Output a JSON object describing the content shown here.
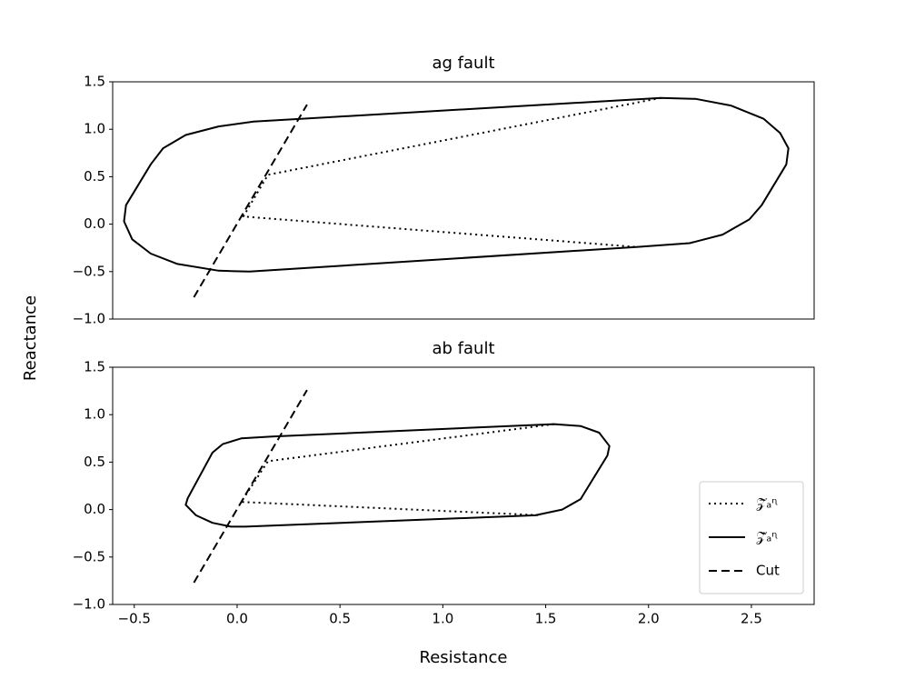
{
  "figure": {
    "ylabel": "Reactance"
  },
  "chart_data": [
    {
      "type": "line",
      "title": "ag fault",
      "xlim": [
        -0.605,
        2.805
      ],
      "ylim": [
        -1.0,
        1.5
      ],
      "yticks": [
        {
          "value": -1.0,
          "label": "−1.0"
        },
        {
          "value": -0.5,
          "label": "−0.5"
        },
        {
          "value": 0.0,
          "label": "0.0"
        },
        0.5,
        {
          "value": 1.0,
          "label": "1.0"
        },
        1.5
      ],
      "series": [
        {
          "color": "#000000",
          "dash": "dotted",
          "x": [
            2.06,
            0.15,
            0.03,
            1.94
          ],
          "values": [
            1.33,
            0.52,
            0.08,
            -0.24
          ]
        },
        {
          "color": "#000000",
          "dash": "solid",
          "x": [
            0.06,
            1.94,
            2.2,
            2.36,
            2.49,
            2.55,
            2.67,
            2.68,
            2.64,
            2.56,
            2.4,
            2.23,
            2.06,
            0.08,
            -0.09,
            -0.25,
            -0.36,
            -0.42,
            -0.54,
            -0.55,
            -0.51,
            -0.42,
            -0.29,
            -0.09,
            0.06
          ],
          "values": [
            -0.5,
            -0.24,
            -0.2,
            -0.11,
            0.05,
            0.2,
            0.63,
            0.8,
            0.96,
            1.11,
            1.25,
            1.32,
            1.33,
            1.08,
            1.03,
            0.94,
            0.8,
            0.63,
            0.2,
            0.03,
            -0.16,
            -0.31,
            -0.42,
            -0.49,
            -0.5
          ]
        },
        {
          "color": "#000000",
          "dash": "dashed",
          "x": [
            -0.21,
            0.34
          ],
          "values": [
            -0.77,
            1.26
          ]
        }
      ]
    },
    {
      "type": "line",
      "title": "ab fault",
      "xlabel": "Resistance",
      "xlim": [
        -0.605,
        2.805
      ],
      "ylim": [
        -1.0,
        1.5
      ],
      "xticks": [
        {
          "value": -0.5,
          "label": "−0.5"
        },
        {
          "value": 0.0,
          "label": "0.0"
        },
        0.5,
        {
          "value": 1.0,
          "label": "1.0"
        },
        1.5,
        {
          "value": 2.0,
          "label": "2.0"
        },
        2.5
      ],
      "yticks": [
        {
          "value": -1.0,
          "label": "−1.0"
        },
        {
          "value": -0.5,
          "label": "−0.5"
        },
        {
          "value": 0.0,
          "label": "0.0"
        },
        0.5,
        {
          "value": 1.0,
          "label": "1.0"
        },
        1.5
      ],
      "legend": "lower right",
      "series": [
        {
          "name": "𝒵⃗ₐᶯ",
          "color": "#000000",
          "dash": "dotted",
          "x": [
            1.54,
            0.15,
            0.02,
            1.48
          ],
          "values": [
            0.9,
            0.51,
            0.08,
            -0.06
          ]
        },
        {
          "name": "𝒵̂ₐᶯ",
          "color": "#000000",
          "dash": "solid",
          "x": [
            0.04,
            1.45,
            1.58,
            1.67,
            1.8,
            1.81,
            1.76,
            1.67,
            1.54,
            0.17,
            0.02,
            -0.07,
            -0.12,
            -0.24,
            -0.25,
            -0.2,
            -0.12,
            -0.03,
            0.04
          ],
          "values": [
            -0.18,
            -0.06,
            0.0,
            0.11,
            0.57,
            0.67,
            0.81,
            0.88,
            0.9,
            0.77,
            0.75,
            0.69,
            0.6,
            0.12,
            0.05,
            -0.06,
            -0.14,
            -0.18,
            -0.18
          ]
        },
        {
          "name": "Cut",
          "color": "#000000",
          "dash": "dashed",
          "x": [
            -0.21,
            0.34
          ],
          "values": [
            -0.77,
            1.26
          ]
        }
      ]
    }
  ]
}
